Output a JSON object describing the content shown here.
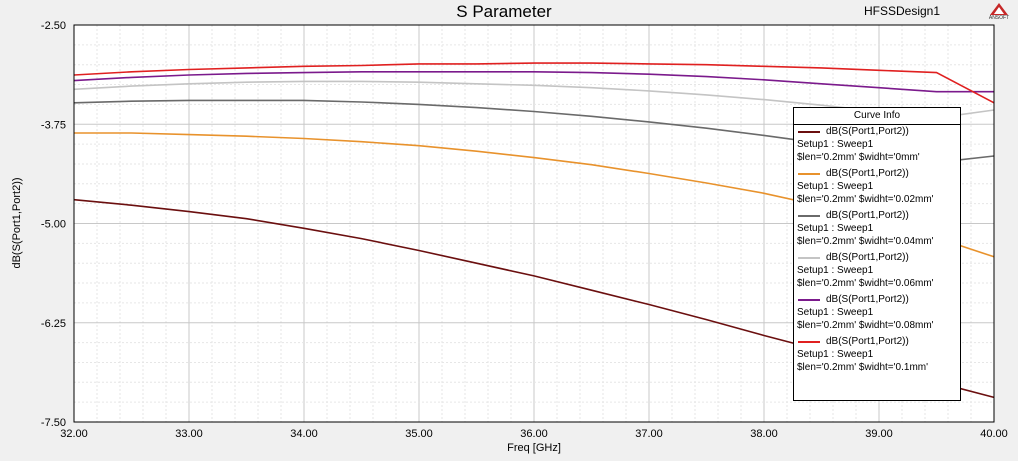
{
  "header": {
    "design_name": "HFSSDesign1",
    "logo_text": "ANSOFT"
  },
  "chart_data": {
    "type": "line",
    "title": "S Parameter",
    "xlabel": "Freq [GHz]",
    "ylabel": "dB(S(Port1,Port2))",
    "xlim": [
      32.0,
      40.0
    ],
    "ylim": [
      -7.5,
      -2.5
    ],
    "x_ticks": [
      "32.00",
      "33.00",
      "34.00",
      "35.00",
      "36.00",
      "37.00",
      "38.00",
      "39.00",
      "40.00"
    ],
    "y_ticks": [
      "-2.50",
      "-3.75",
      "-5.00",
      "-6.25",
      "-7.50"
    ],
    "grid": true,
    "x": [
      32.0,
      32.5,
      33.0,
      33.5,
      34.0,
      34.5,
      35.0,
      35.5,
      36.0,
      36.5,
      37.0,
      37.5,
      38.0,
      38.5,
      39.0,
      39.5,
      40.0
    ],
    "series": [
      {
        "color": "#6b0f0f",
        "values": [
          -4.7,
          -4.77,
          -4.85,
          -4.94,
          -5.06,
          -5.19,
          -5.34,
          -5.5,
          -5.66,
          -5.84,
          -6.02,
          -6.21,
          -6.41,
          -6.6,
          -6.8,
          -7.0,
          -7.19
        ]
      },
      {
        "color": "#e8922c",
        "values": [
          -3.86,
          -3.86,
          -3.88,
          -3.9,
          -3.93,
          -3.97,
          -4.02,
          -4.09,
          -4.17,
          -4.26,
          -4.37,
          -4.49,
          -4.62,
          -4.78,
          -4.95,
          -5.18,
          -5.42
        ]
      },
      {
        "color": "#6a6a6a",
        "values": [
          -3.48,
          -3.46,
          -3.45,
          -3.45,
          -3.45,
          -3.47,
          -3.5,
          -3.54,
          -3.59,
          -3.65,
          -3.72,
          -3.8,
          -3.89,
          -3.99,
          -4.1,
          -4.23,
          -4.15
        ]
      },
      {
        "color": "#c4c4c4",
        "values": [
          -3.31,
          -3.27,
          -3.24,
          -3.22,
          -3.21,
          -3.21,
          -3.22,
          -3.24,
          -3.26,
          -3.29,
          -3.33,
          -3.38,
          -3.44,
          -3.51,
          -3.59,
          -3.67,
          -3.57
        ]
      },
      {
        "color": "#7b1a8c",
        "values": [
          -3.2,
          -3.16,
          -3.13,
          -3.11,
          -3.1,
          -3.09,
          -3.09,
          -3.09,
          -3.09,
          -3.1,
          -3.12,
          -3.15,
          -3.19,
          -3.24,
          -3.29,
          -3.34,
          -3.34
        ]
      },
      {
        "color": "#e02020",
        "values": [
          -3.13,
          -3.09,
          -3.06,
          -3.04,
          -3.02,
          -3.01,
          -2.99,
          -2.99,
          -2.98,
          -2.98,
          -2.99,
          -3.0,
          -3.02,
          -3.04,
          -3.07,
          -3.1,
          -3.48
        ]
      }
    ]
  },
  "legend": {
    "title": "Curve Info",
    "entries": [
      {
        "name": "dB(S(Port1,Port2))",
        "setup": "Setup1 : Sweep1",
        "params": "$len='0.2mm' $widht='0mm'",
        "color": "#6b0f0f"
      },
      {
        "name": "dB(S(Port1,Port2))",
        "setup": "Setup1 : Sweep1",
        "params": "$len='0.2mm' $widht='0.02mm'",
        "color": "#e8922c"
      },
      {
        "name": "dB(S(Port1,Port2))",
        "setup": "Setup1 : Sweep1",
        "params": "$len='0.2mm' $widht='0.04mm'",
        "color": "#6a6a6a"
      },
      {
        "name": "dB(S(Port1,Port2))",
        "setup": "Setup1 : Sweep1",
        "params": "$len='0.2mm' $widht='0.06mm'",
        "color": "#c4c4c4"
      },
      {
        "name": "dB(S(Port1,Port2))",
        "setup": "Setup1 : Sweep1",
        "params": "$len='0.2mm' $widht='0.08mm'",
        "color": "#7b1a8c"
      },
      {
        "name": "dB(S(Port1,Port2))",
        "setup": "Setup1 : Sweep1",
        "params": "$len='0.2mm' $widht='0.1mm'",
        "color": "#e02020"
      }
    ]
  }
}
